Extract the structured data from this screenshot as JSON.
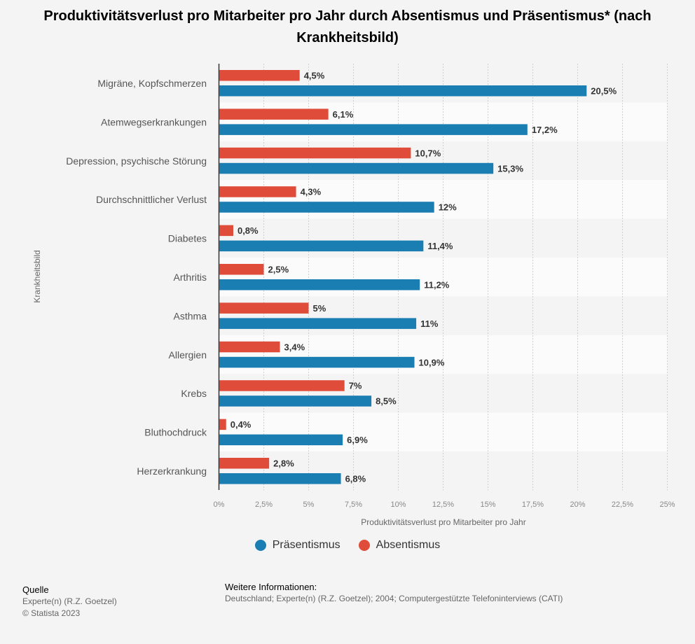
{
  "chart_data": {
    "type": "bar",
    "orientation": "horizontal",
    "title": "Produktivitätsverlust pro Mitarbeiter pro Jahr durch Absentismus und Präsentismus* (nach Krankheitsbild)",
    "xlabel": "Produktivitätsverlust pro Mitarbeiter pro Jahr",
    "ylabel": "Krankheitsbild",
    "xlim": [
      0,
      25
    ],
    "xticks": [
      0,
      2.5,
      5,
      7.5,
      10,
      12.5,
      15,
      17.5,
      20,
      22.5,
      25
    ],
    "xtick_labels": [
      "0%",
      "2,5%",
      "5%",
      "7,5%",
      "10%",
      "12,5%",
      "15%",
      "17,5%",
      "20%",
      "22,5%",
      "25%"
    ],
    "categories": [
      "Migräne, Kopfschmerzen",
      "Atemwegserkrankungen",
      "Depression, psychische Störung",
      "Durchschnittlicher Verlust",
      "Diabetes",
      "Arthritis",
      "Asthma",
      "Allergien",
      "Krebs",
      "Bluthochdruck",
      "Herzerkrankung"
    ],
    "series": [
      {
        "name": "Absentismus",
        "color": "#e04c3a",
        "values": [
          4.5,
          6.1,
          10.7,
          4.3,
          0.8,
          2.5,
          5,
          3.4,
          7,
          0.4,
          2.8
        ],
        "labels": [
          "4,5%",
          "6,1%",
          "10,7%",
          "4,3%",
          "0,8%",
          "2,5%",
          "5%",
          "3,4%",
          "7%",
          "0,4%",
          "2,8%"
        ]
      },
      {
        "name": "Präsentismus",
        "color": "#1b7eb3",
        "values": [
          20.5,
          17.2,
          15.3,
          12,
          11.4,
          11.2,
          11,
          10.9,
          8.5,
          6.9,
          6.8
        ],
        "labels": [
          "20,5%",
          "17,2%",
          "15,3%",
          "12%",
          "11,4%",
          "11,2%",
          "11%",
          "10,9%",
          "8,5%",
          "6,9%",
          "6,8%"
        ]
      }
    ],
    "legend": [
      {
        "name": "Präsentismus",
        "color": "#1b7eb3"
      },
      {
        "name": "Absentismus",
        "color": "#e04c3a"
      }
    ],
    "legend_position": "bottom",
    "grid": true
  },
  "footer": {
    "source_head": "Quelle",
    "source_lines": [
      "Experte(n) (R.Z. Goetzel)",
      "© Statista 2023"
    ],
    "info_head": "Weitere Informationen:",
    "info_text": "Deutschland; Experte(n) (R.Z. Goetzel); 2004; Computergestützte Telefoninterviews (CATI)"
  }
}
